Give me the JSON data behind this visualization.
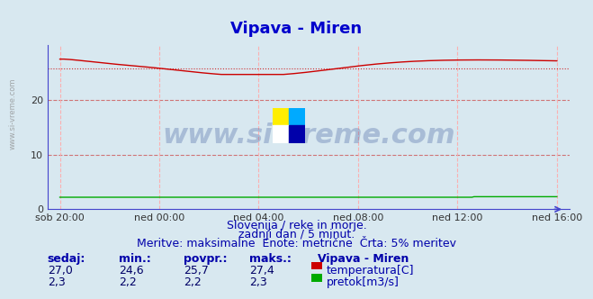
{
  "title": "Vipava - Miren",
  "title_color": "#0000cc",
  "title_fontsize": 13,
  "bg_color": "#d8e8f0",
  "plot_bg_color": "#d8e8f0",
  "ylabel": "",
  "ylim": [
    0,
    30
  ],
  "yticks": [
    0,
    10,
    20
  ],
  "xtick_labels": [
    "sob 20:00",
    "ned 00:00",
    "ned 04:00",
    "ned 08:00",
    "ned 12:00",
    "ned 16:00"
  ],
  "xtick_positions": [
    0,
    4,
    8,
    12,
    16,
    20
  ],
  "temp_avg": 25.7,
  "temp_min": 24.6,
  "temp_max": 27.4,
  "flow_avg": 2.2,
  "flow_min": 2.2,
  "flow_max": 2.3,
  "temp_color": "#cc0000",
  "flow_color": "#00aa00",
  "avg_line_color": "#cc0000",
  "grid_h_color": "#cc4444",
  "grid_v_color": "#ffaaaa",
  "axis_color": "#4444cc",
  "watermark_text": "www.si-vreme.com",
  "watermark_color": "#1a3a8a",
  "watermark_alpha": 0.25,
  "footer_line1": "Slovenija / reke in morje.",
  "footer_line2": "zadnji dan / 5 minut.",
  "footer_line3": "Meritve: maksimalne  Enote: metrične  Črta: 5% meritev",
  "footer_color": "#0000aa",
  "footer_fontsize": 9,
  "table_headers": [
    "sedaj:",
    "min.:",
    "povpr.:",
    "maks.:"
  ],
  "table_values_temp": [
    "27,0",
    "24,6",
    "25,7",
    "27,4"
  ],
  "table_values_flow": [
    "2,3",
    "2,2",
    "2,2",
    "2,3"
  ],
  "table_label": "Vipava - Miren",
  "table_temp_label": "temperatura[C]",
  "table_flow_label": "pretok[m3/s]",
  "table_color": "#0000aa",
  "table_value_color": "#000080"
}
